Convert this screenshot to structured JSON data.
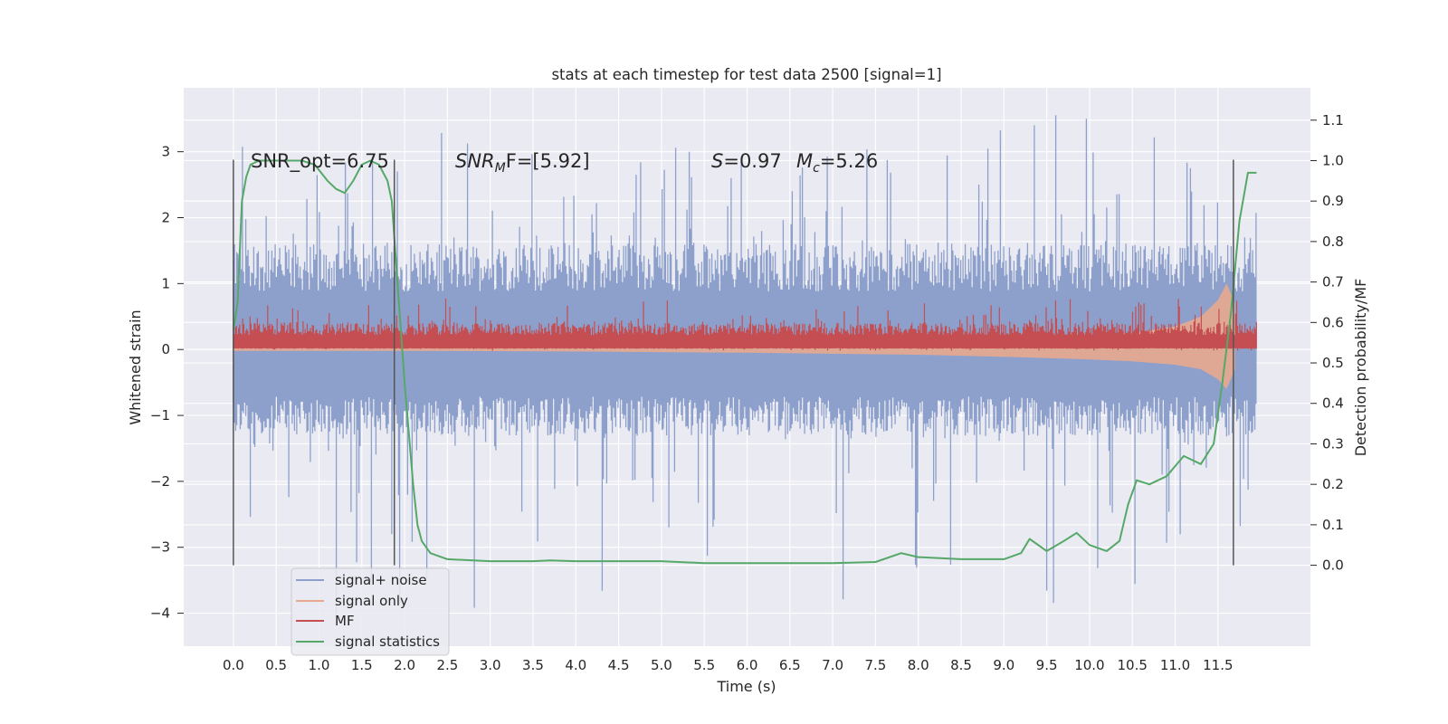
{
  "chart_data": {
    "type": "line",
    "title": "stats at each timestep for test data 2500 [signal=1]",
    "xlabel": "Time (s)",
    "ylabel": "Whitened strain",
    "ylabel_right": "Detection probability/MF",
    "xlim": [
      -0.58,
      12.58
    ],
    "ylim": [
      -4.5,
      3.97
    ],
    "ylim_right": [
      -0.2,
      1.18
    ],
    "x_ticks": [
      "0.0",
      "0.5",
      "1.0",
      "1.5",
      "2.0",
      "2.5",
      "3.0",
      "3.5",
      "4.0",
      "4.5",
      "5.0",
      "5.5",
      "6.0",
      "6.5",
      "7.0",
      "7.5",
      "8.0",
      "8.5",
      "9.0",
      "9.5",
      "10.0",
      "10.5",
      "11.0",
      "11.5"
    ],
    "y_ticks": [
      "3",
      "2",
      "1",
      "0",
      "−1",
      "−2",
      "−3",
      "−4"
    ],
    "y_right_ticks": [
      "1.1",
      "1.0",
      "0.9",
      "0.8",
      "0.7",
      "0.6",
      "0.5",
      "0.4",
      "0.3",
      "0.2",
      "0.1",
      "0.0"
    ],
    "annotations": {
      "snr_opt": "SNR_opt=6.75",
      "snr_mf_main": "SNR",
      "snr_mf_sub": "M",
      "snr_mf_rest": "F=[5.92]",
      "s_main": "S",
      "s_rest": "=0.97",
      "mc_main": "M",
      "mc_sub": "c",
      "mc_rest": "=5.26"
    },
    "vertical_lines_x": [
      0.0,
      1.88,
      11.68
    ],
    "legend": {
      "placement": "lower-left",
      "entries": [
        {
          "label": "signal+ noise",
          "color": "#8da0cb"
        },
        {
          "label": "signal only",
          "color": "#e8a98e"
        },
        {
          "label": "MF",
          "color": "#c44e52"
        },
        {
          "label": "signal statistics",
          "color": "#55a868"
        }
      ]
    },
    "series": [
      {
        "name": "signal+ noise",
        "kind": "noise-band",
        "color": "#8da0cb",
        "x_range": [
          0.0,
          11.95
        ],
        "typical_min": -1.3,
        "typical_max": 1.6,
        "extreme_max": 3.6,
        "extreme_min": -4.1
      },
      {
        "name": "signal only",
        "kind": "chirp-envelope",
        "color": "#e8a98e",
        "x": [
          0.0,
          2.0,
          4.0,
          6.0,
          8.0,
          9.0,
          10.0,
          10.5,
          11.0,
          11.3,
          11.5,
          11.6,
          11.7
        ],
        "upper": [
          0.03,
          0.03,
          0.05,
          0.08,
          0.12,
          0.15,
          0.2,
          0.25,
          0.35,
          0.5,
          0.75,
          1.0,
          0.7
        ],
        "lower": [
          -0.02,
          -0.02,
          -0.03,
          -0.05,
          -0.08,
          -0.11,
          -0.15,
          -0.18,
          -0.23,
          -0.3,
          -0.45,
          -0.6,
          -0.3
        ]
      },
      {
        "name": "MF",
        "kind": "noise-band",
        "color": "#c44e52",
        "x_range": [
          0.0,
          11.95
        ],
        "typical_min": 0.02,
        "typical_max": 0.4,
        "extreme_max": 0.78,
        "extreme_min": -0.02
      },
      {
        "name": "signal statistics",
        "kind": "line",
        "color": "#55a868",
        "axis": "right",
        "x": [
          0.0,
          0.05,
          0.1,
          0.15,
          0.2,
          0.3,
          0.5,
          0.8,
          0.95,
          1.1,
          1.2,
          1.3,
          1.4,
          1.5,
          1.6,
          1.7,
          1.8,
          1.85,
          1.9,
          2.0,
          2.1,
          2.15,
          2.2,
          2.3,
          2.5,
          3.0,
          3.5,
          3.7,
          4.0,
          4.5,
          5.0,
          5.5,
          6.0,
          6.5,
          7.0,
          7.5,
          7.8,
          8.0,
          8.5,
          9.0,
          9.2,
          9.3,
          9.5,
          9.7,
          9.85,
          10.0,
          10.2,
          10.35,
          10.45,
          10.55,
          10.7,
          10.9,
          11.1,
          11.3,
          11.45,
          11.55,
          11.65,
          11.75,
          11.85,
          11.95
        ],
        "values": [
          0.58,
          0.65,
          0.9,
          0.96,
          0.99,
          1.0,
          1.0,
          1.0,
          0.99,
          0.95,
          0.93,
          0.92,
          0.95,
          0.99,
          1.0,
          0.99,
          0.95,
          0.9,
          0.75,
          0.45,
          0.2,
          0.1,
          0.06,
          0.03,
          0.015,
          0.01,
          0.01,
          0.012,
          0.01,
          0.01,
          0.01,
          0.005,
          0.005,
          0.005,
          0.005,
          0.008,
          0.03,
          0.02,
          0.015,
          0.015,
          0.03,
          0.065,
          0.035,
          0.06,
          0.08,
          0.05,
          0.035,
          0.06,
          0.15,
          0.21,
          0.2,
          0.22,
          0.27,
          0.25,
          0.3,
          0.45,
          0.62,
          0.85,
          0.97,
          0.97
        ]
      }
    ]
  }
}
